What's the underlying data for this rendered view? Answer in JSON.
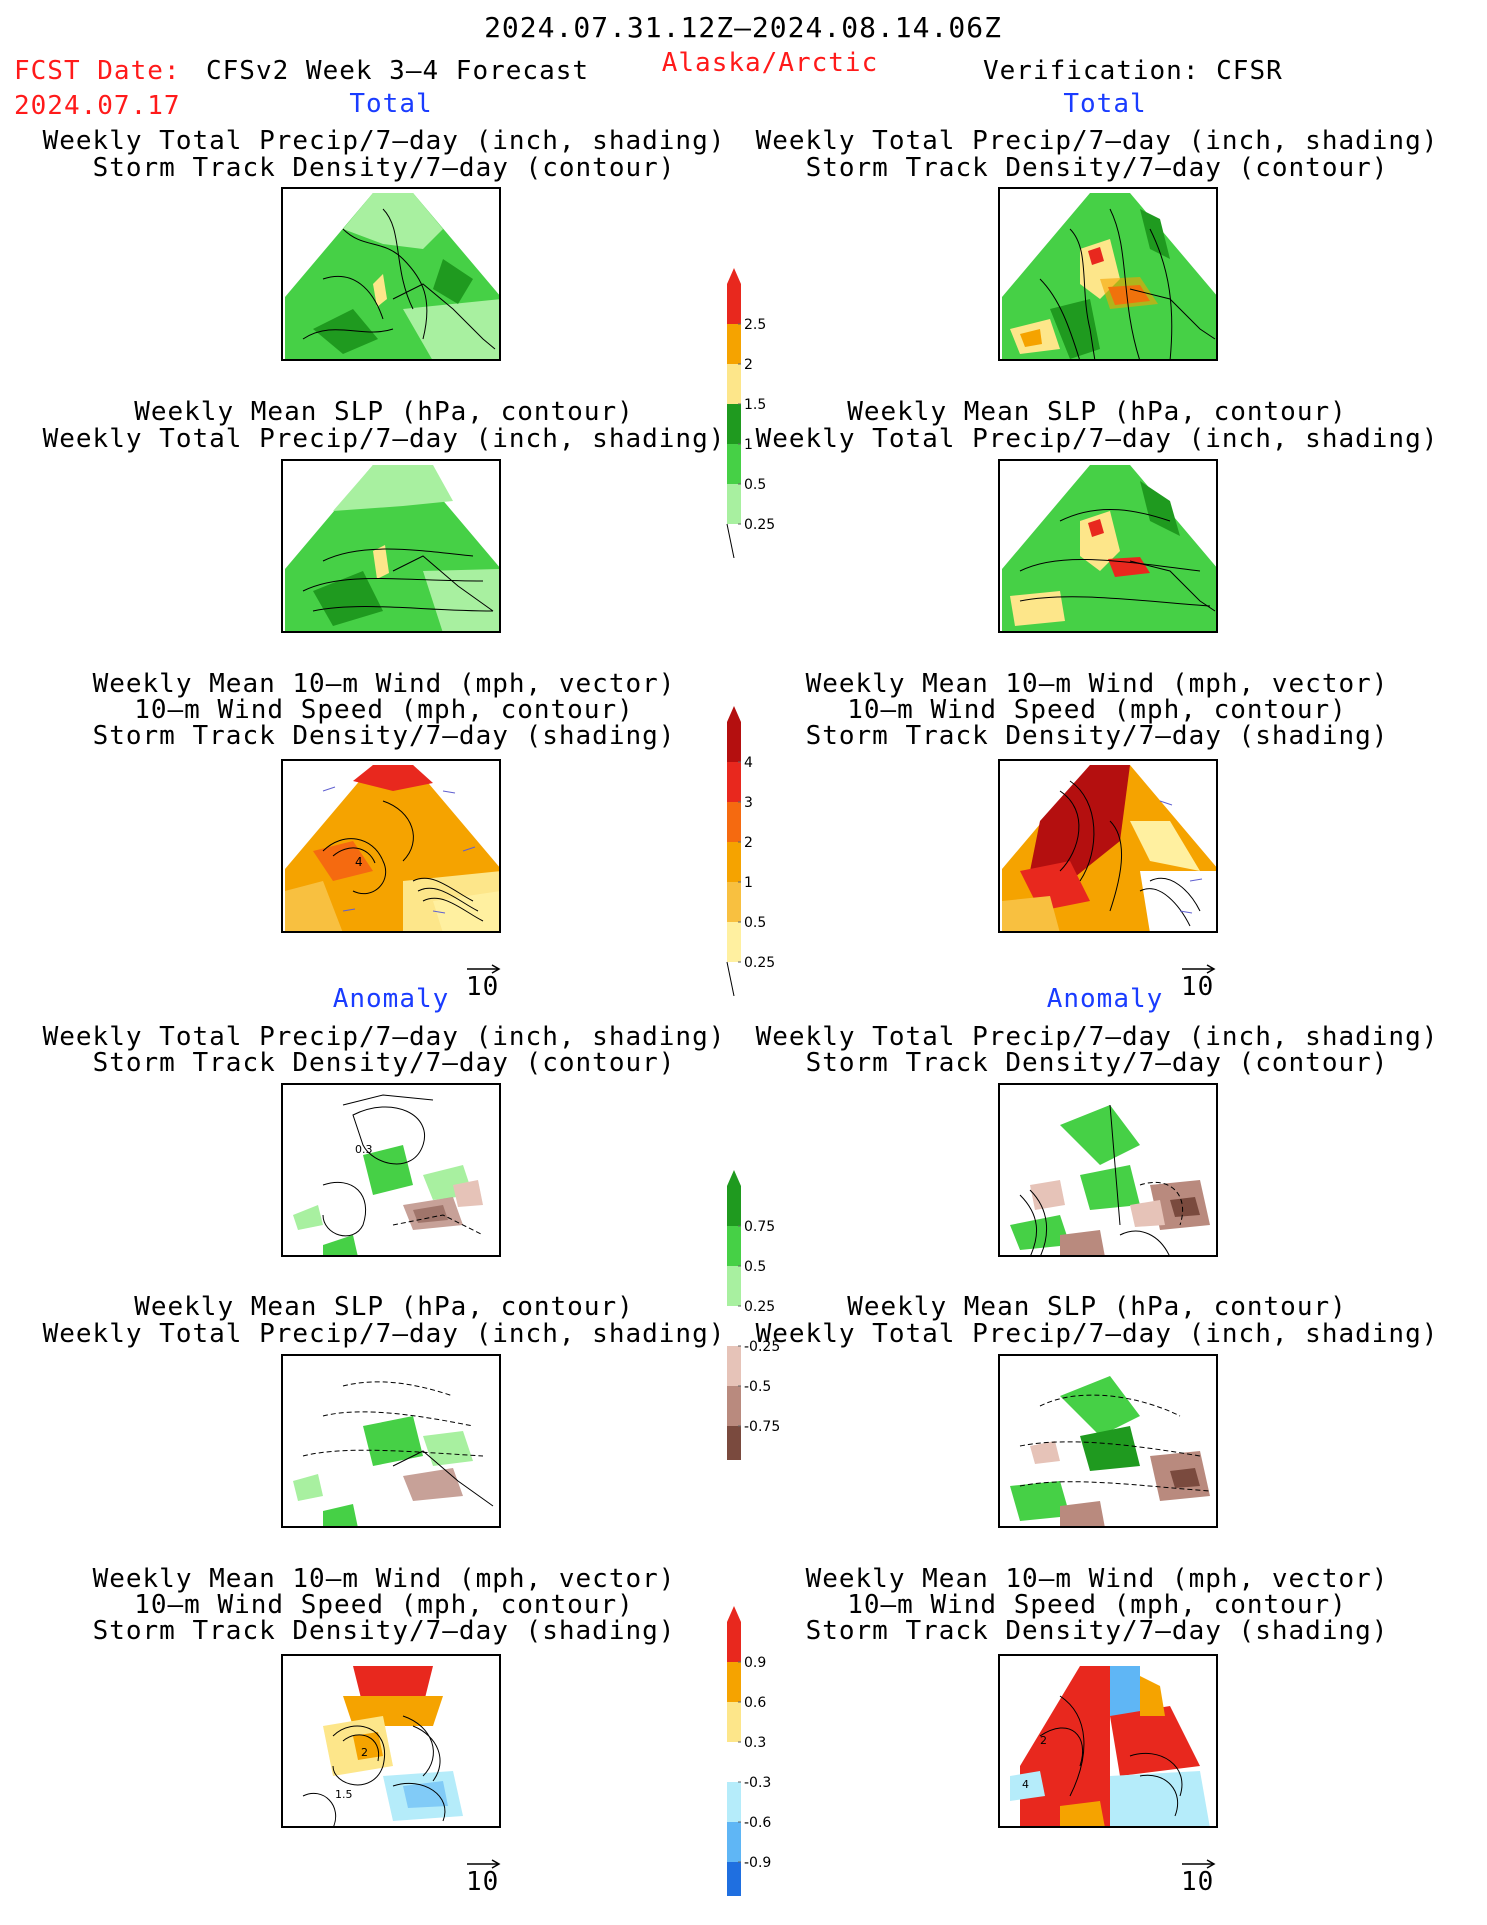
{
  "header": {
    "period": "2024.07.31.12Z–2024.08.14.06Z",
    "fcst_label": "FCST Date:",
    "fcst_date": "2024.07.17",
    "model": "CFSv2 Week 3–4 Forecast",
    "region": "Alaska/Arctic",
    "verification": "Verification: CFSR"
  },
  "sections": {
    "total_left": "Total",
    "total_right": "Total",
    "anomaly_left": "Anomaly",
    "anomaly_right": "Anomaly"
  },
  "panel_titles": {
    "precip_storm": [
      "Weekly Total Precip/7–day (inch, shading)",
      "Storm Track Density/7–day (contour)"
    ],
    "slp_precip": [
      "Weekly Mean SLP (hPa, contour)",
      "Weekly Total Precip/7–day (inch, shading)"
    ],
    "wind_storm": [
      "Weekly Mean 10–m Wind (mph, vector)",
      "10–m Wind Speed (mph, contour)",
      "Storm Track Density/7–day (shading)"
    ]
  },
  "vector_scale": "10",
  "contour_labels": {
    "wind_total_left": "4",
    "precip_anom_left": "0.3",
    "wind_anom_left": "2",
    "wind_anom_left_b": "1.5",
    "wind_anom_right": "2",
    "wind_anom_right_b": "4"
  },
  "colorbars": {
    "precip_total": {
      "labels": [
        "2.5",
        "2",
        "1.5",
        "1",
        "0.5",
        "0.25"
      ],
      "colors": [
        "#e8281e",
        "#f5a300",
        "#fde68a",
        "#1f9a1f",
        "#46d046",
        "#a8f0a0"
      ]
    },
    "storm_total": {
      "labels": [
        "4",
        "3",
        "2",
        "1",
        "0.5",
        "0.25"
      ],
      "colors": [
        "#b40f0f",
        "#e8281e",
        "#f56a10",
        "#f5a300",
        "#f8c040",
        "#fff0a0"
      ]
    },
    "precip_anom": {
      "labels": [
        "0.75",
        "0.5",
        "0.25",
        "-0.25",
        "-0.5",
        "-0.75"
      ],
      "colors": [
        "#1f9a1f",
        "#46d046",
        "#a8f0a0",
        "#ffffff",
        "#e6c3b8",
        "#b98a7e",
        "#7a4a3e"
      ]
    },
    "storm_anom": {
      "labels": [
        "0.9",
        "0.6",
        "0.3",
        "-0.3",
        "-0.6",
        "-0.9"
      ],
      "colors": [
        "#e8281e",
        "#f5a300",
        "#fde68a",
        "#ffffff",
        "#b5ecfa",
        "#5fb6f5",
        "#1f6fe0"
      ]
    }
  }
}
